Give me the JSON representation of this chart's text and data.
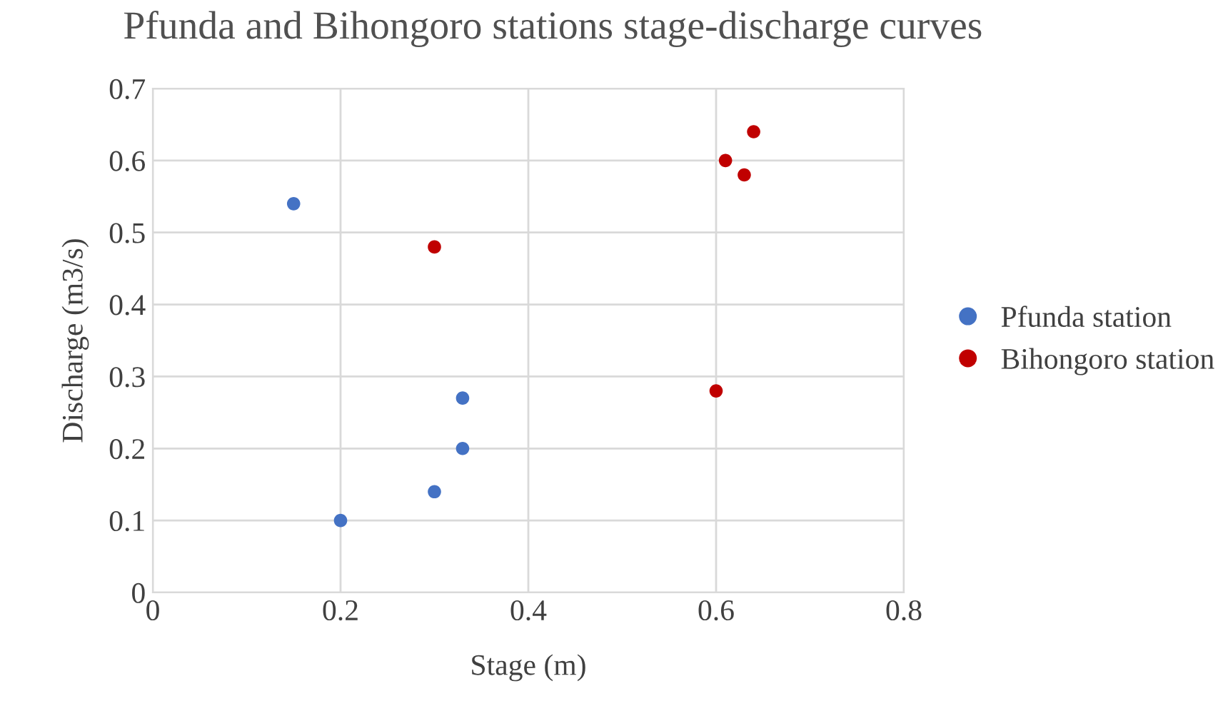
{
  "chart_data": {
    "type": "scatter",
    "title": "Pfunda and Bihongoro stations stage-discharge curves",
    "xlabel": "Stage (m)",
    "ylabel": "Discharge (m3/s)",
    "series": [
      {
        "name": "Pfunda station",
        "color": "#4472c4",
        "x": [
          0.15,
          0.2,
          0.3,
          0.33,
          0.33
        ],
        "values": [
          0.54,
          0.1,
          0.14,
          0.2,
          0.27
        ]
      },
      {
        "name": "Bihongoro station",
        "color": "#c00000",
        "x": [
          0.3,
          0.6,
          0.61,
          0.63,
          0.64
        ],
        "values": [
          0.48,
          0.28,
          0.6,
          0.58,
          0.64
        ]
      }
    ],
    "xlim": [
      0,
      0.8
    ],
    "xticks": [
      0,
      0.2,
      0.4,
      0.6,
      0.8
    ],
    "ylim": [
      0,
      0.7
    ],
    "yticks": [
      0,
      0.1,
      0.2,
      0.3,
      0.4,
      0.5,
      0.6,
      0.7
    ],
    "grid": true,
    "legend": "right",
    "marker": "circle"
  }
}
